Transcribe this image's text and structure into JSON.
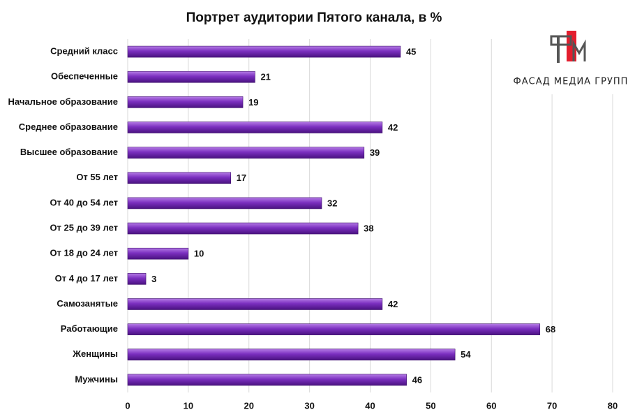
{
  "chart_data": {
    "type": "bar",
    "orientation": "horizontal",
    "title": "Портрет аудитории Пятого канала, в %",
    "logo_text": "ФАСАД МЕДИА ГРУПП",
    "categories": [
      "Средний класс",
      "Обеспеченные",
      "Начальное образование",
      "Среднее образование",
      "Высшее образование",
      "От 55 лет",
      "От 40 до 54 лет",
      "От 25 до 39 лет",
      "От 18 до 24 лет",
      "От 4 до 17 лет",
      "Самозанятые",
      "Работающие",
      "Женщины",
      "Мужчины"
    ],
    "values": [
      45,
      21,
      19,
      42,
      39,
      17,
      32,
      38,
      10,
      3,
      42,
      68,
      54,
      46
    ],
    "color": "#7b2fbf",
    "xlim": [
      0,
      80
    ],
    "xticks": [
      0,
      10,
      20,
      30,
      40,
      50,
      60,
      70,
      80
    ],
    "grid": true
  }
}
